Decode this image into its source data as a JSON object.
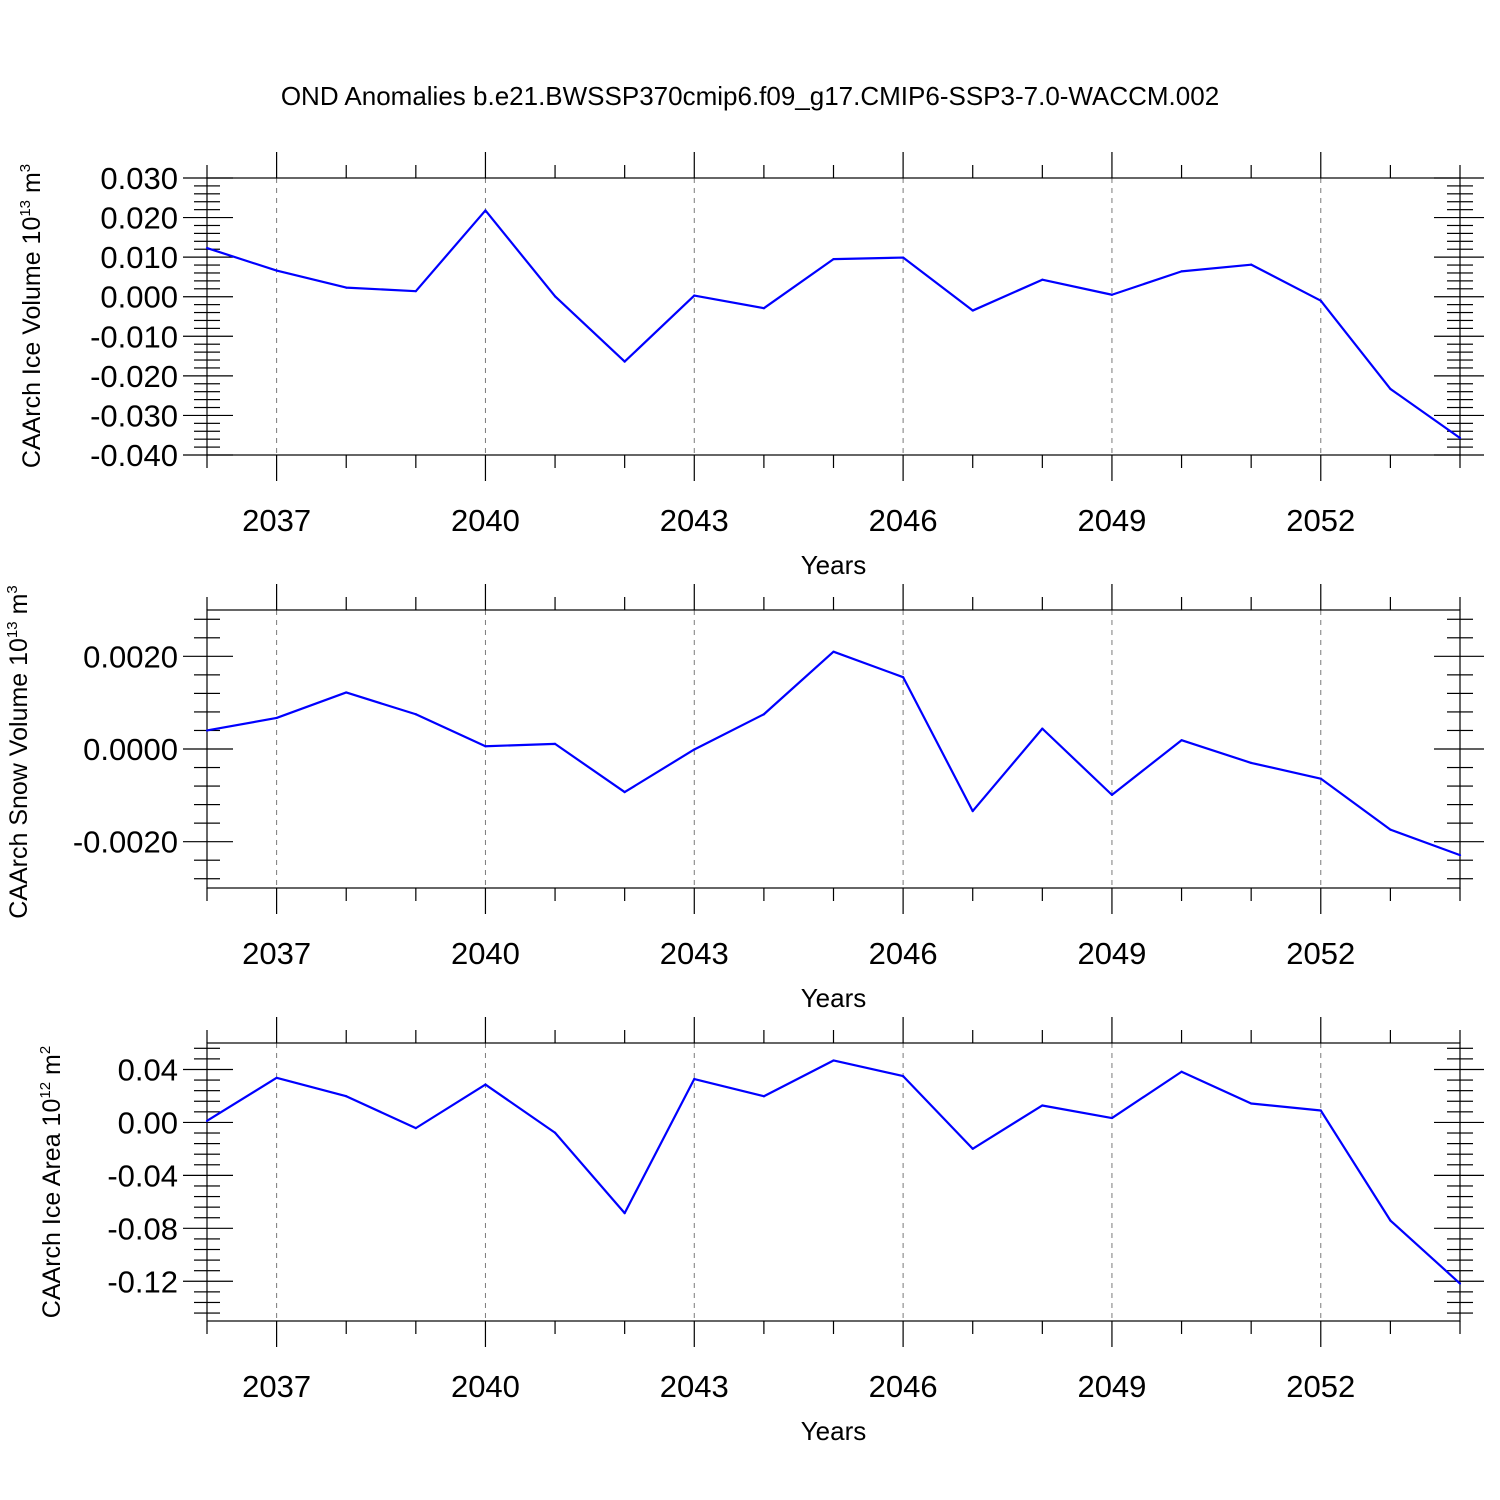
{
  "title": "OND Anomalies b.e21.BWSSP370cmip6.f09_g17.CMIP6-SSP3-7.0-WACCM.002",
  "colors": {
    "line": "#0000ff",
    "frame": "#000000",
    "grid": "#7a7a7a"
  },
  "chart_data": [
    {
      "type": "line",
      "ylabel": {
        "prefix": "CAArch Ice Volume 10",
        "exp": "13",
        "unit": " m",
        "unit_exp": "3"
      },
      "xlabel": "Years",
      "xlim": [
        2036,
        2054
      ],
      "ylim": [
        -0.04,
        0.03
      ],
      "xticks": [
        "2037",
        "2040",
        "2043",
        "2046",
        "2049",
        "2052"
      ],
      "yticks": [
        "0.030",
        "0.020",
        "0.010",
        "0.000",
        "-0.010",
        "-0.020",
        "-0.030",
        "-0.040"
      ],
      "grid": "vertical dashed at labeled years",
      "x": [
        2036,
        2037,
        2038,
        2039,
        2040,
        2041,
        2042,
        2043,
        2044,
        2045,
        2046,
        2047,
        2048,
        2049,
        2050,
        2051,
        2052,
        2053,
        2054
      ],
      "series": [
        {
          "values": [
            0.0123,
            0.0066,
            0.0023,
            0.0014,
            0.0218,
            0.0001,
            -0.0164,
            0.0003,
            -0.0029,
            0.0095,
            0.0099,
            -0.0035,
            0.0043,
            0.0005,
            0.0064,
            0.0081,
            -0.001,
            -0.0233,
            -0.0357
          ]
        }
      ]
    },
    {
      "type": "line",
      "ylabel": {
        "prefix": "CAArch Snow Volume 10",
        "exp": "13",
        "unit": " m",
        "unit_exp": "3"
      },
      "xlabel": "Years",
      "xlim": [
        2036,
        2054
      ],
      "ylim": [
        -0.003,
        0.003
      ],
      "xticks": [
        "2037",
        "2040",
        "2043",
        "2046",
        "2049",
        "2052"
      ],
      "yticks": [
        "0.0020",
        "0.0000",
        "-0.0020"
      ],
      "grid": "vertical dashed at labeled years",
      "x": [
        2036,
        2037,
        2038,
        2039,
        2040,
        2041,
        2042,
        2043,
        2044,
        2045,
        2046,
        2047,
        2048,
        2049,
        2050,
        2051,
        2052,
        2053,
        2054
      ],
      "series": [
        {
          "values": [
            0.0004,
            0.00067,
            0.00122,
            0.00075,
            6e-05,
            0.00011,
            -0.00093,
            -1e-05,
            0.00075,
            0.0021,
            0.00155,
            -0.00134,
            0.00044,
            -0.00099,
            0.00019,
            -0.0003,
            -0.00064,
            -0.00174,
            -0.00229
          ]
        }
      ]
    },
    {
      "type": "line",
      "ylabel": {
        "prefix": "CAArch Ice Area 10",
        "exp": "12",
        "unit": " m",
        "unit_exp": "2"
      },
      "xlabel": "Years",
      "xlim": [
        2036,
        2054
      ],
      "ylim": [
        -0.15,
        0.06
      ],
      "xticks": [
        "2037",
        "2040",
        "2043",
        "2046",
        "2049",
        "2052"
      ],
      "yticks": [
        "0.04",
        "0.00",
        "-0.04",
        "-0.08",
        "-0.12"
      ],
      "grid": "vertical dashed at labeled years",
      "x": [
        2036,
        2037,
        2038,
        2039,
        2040,
        2041,
        2042,
        2043,
        2044,
        2045,
        2046,
        2047,
        2048,
        2049,
        2050,
        2051,
        2052,
        2053,
        2054
      ],
      "series": [
        {
          "values": [
            0.0012,
            0.0337,
            0.0198,
            -0.0043,
            0.0286,
            -0.0078,
            -0.0685,
            0.0328,
            0.0198,
            0.0468,
            0.035,
            -0.0199,
            0.0128,
            0.0033,
            0.0383,
            0.0143,
            0.009,
            -0.0741,
            -0.1217
          ]
        }
      ]
    }
  ]
}
